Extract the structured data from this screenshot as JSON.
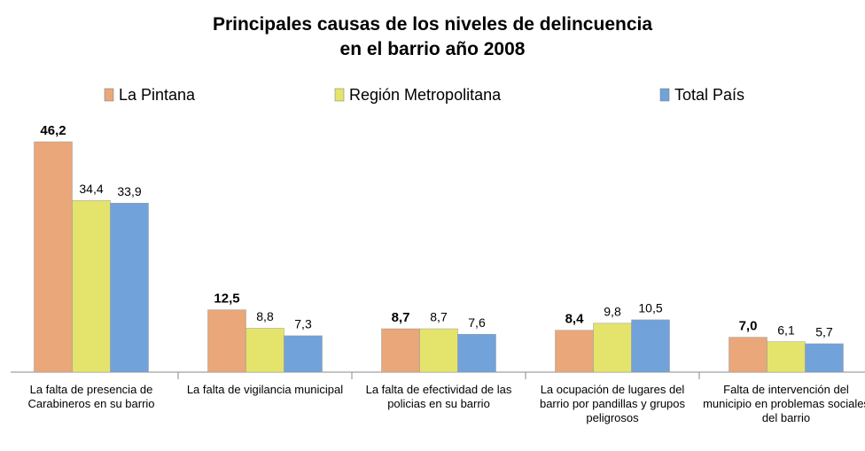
{
  "chart_data": {
    "type": "bar",
    "title": "Principales causas de los niveles de delincuencia\nen el barrio año 2008",
    "categories": [
      "La falta de presencia de Carabineros en su barrio",
      "La falta de vigilancia municipal",
      "La falta de efectividad de las policias en su barrio",
      "La ocupación de lugares del barrio por pandillas y grupos peligrosos",
      "Falta de intervención del municipio en problemas sociales del barrio"
    ],
    "series": [
      {
        "name": "La Pintana",
        "color": "#e9a77a",
        "values": [
          46.2,
          12.5,
          8.7,
          8.4,
          7.0
        ],
        "value_labels": [
          "46,2",
          "12,5",
          "8,7",
          "8,4",
          "7,0"
        ]
      },
      {
        "name": "Región Metropolitana",
        "color": "#e4e46c",
        "values": [
          34.4,
          8.8,
          8.7,
          9.8,
          6.1
        ],
        "value_labels": [
          "34,4",
          "8,8",
          "8,7",
          "9,8",
          "6,1"
        ]
      },
      {
        "name": "Total País",
        "color": "#72a2da",
        "values": [
          33.9,
          7.3,
          7.6,
          10.5,
          5.7
        ],
        "value_labels": [
          "33,9",
          "7,3",
          "7,6",
          "10,5",
          "5,7"
        ]
      }
    ],
    "legend": "top"
  }
}
